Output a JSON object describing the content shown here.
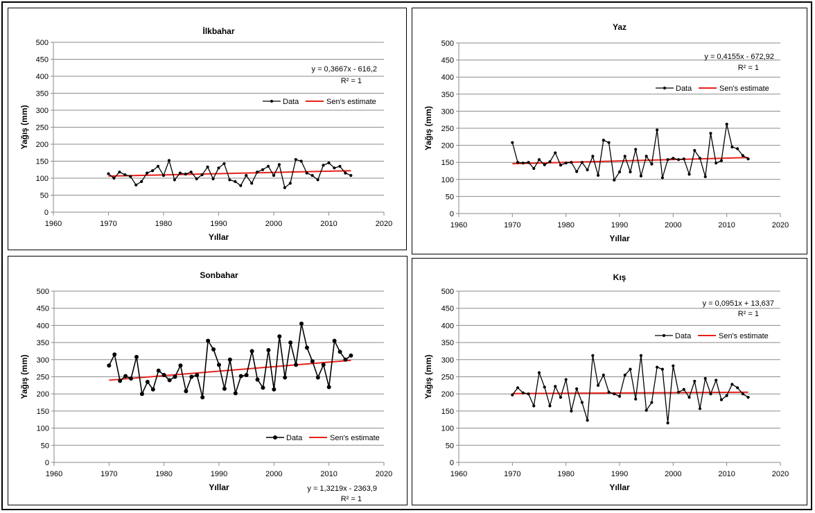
{
  "chart_data": [
    {
      "type": "line",
      "title": "İlkbahar",
      "xlabel": "Yıllar",
      "ylabel": "Yağış (mm)",
      "xlim": [
        1960,
        2020
      ],
      "ylim": [
        0,
        500
      ],
      "xticks": [
        "1960",
        "1970",
        "1980",
        "1990",
        "2000",
        "2010",
        "2020"
      ],
      "yticks": [
        "0",
        "50",
        "100",
        "150",
        "200",
        "250",
        "300",
        "350",
        "400",
        "450",
        "500"
      ],
      "legend": "right",
      "grid": true,
      "equation": "y = 0,3667x - 616,2",
      "r2": "R² = 1",
      "series": [
        {
          "name": "Data",
          "color": "#000000",
          "x": [
            1970,
            1971,
            1972,
            1973,
            1974,
            1975,
            1976,
            1977,
            1978,
            1979,
            1980,
            1981,
            1982,
            1983,
            1984,
            1985,
            1986,
            1987,
            1988,
            1989,
            1990,
            1991,
            1992,
            1993,
            1994,
            1995,
            1996,
            1997,
            1998,
            1999,
            2000,
            2001,
            2002,
            2003,
            2004,
            2005,
            2006,
            2007,
            2008,
            2009,
            2010,
            2011,
            2012,
            2013,
            2014
          ],
          "values": [
            113,
            100,
            118,
            110,
            105,
            80,
            90,
            115,
            122,
            135,
            108,
            152,
            95,
            115,
            112,
            118,
            98,
            110,
            133,
            98,
            130,
            143,
            95,
            90,
            78,
            108,
            85,
            118,
            125,
            135,
            108,
            140,
            72,
            85,
            155,
            150,
            115,
            108,
            95,
            138,
            145,
            130,
            135,
            115,
            108
          ]
        },
        {
          "name": "Sen's estimate",
          "color": "#e8201a",
          "x": [
            1970,
            2014
          ],
          "values": [
            106,
            122
          ]
        }
      ]
    },
    {
      "type": "line",
      "title": "Yaz",
      "xlabel": "Yıllar",
      "ylabel": "Yağış (mm)",
      "xlim": [
        1960,
        2020
      ],
      "ylim": [
        0,
        500
      ],
      "xticks": [
        "1960",
        "1970",
        "1980",
        "1990",
        "2000",
        "2010",
        "2020"
      ],
      "yticks": [
        "0",
        "50",
        "100",
        "150",
        "200",
        "250",
        "300",
        "350",
        "400",
        "450",
        "500"
      ],
      "legend": "right",
      "grid": true,
      "equation": "y = 0,4155x - 672,92",
      "r2": "R² = 1",
      "series": [
        {
          "name": "Data",
          "color": "#000000",
          "x": [
            1970,
            1971,
            1972,
            1973,
            1974,
            1975,
            1976,
            1977,
            1978,
            1979,
            1980,
            1981,
            1982,
            1983,
            1984,
            1985,
            1986,
            1987,
            1988,
            1989,
            1990,
            1991,
            1992,
            1993,
            1994,
            1995,
            1996,
            1997,
            1998,
            1999,
            2000,
            2001,
            2002,
            2003,
            2004,
            2005,
            2006,
            2007,
            2008,
            2009,
            2010,
            2011,
            2012,
            2013,
            2014
          ],
          "values": [
            208,
            150,
            148,
            150,
            132,
            158,
            143,
            152,
            178,
            142,
            148,
            150,
            123,
            150,
            128,
            168,
            112,
            215,
            208,
            98,
            122,
            168,
            122,
            188,
            110,
            168,
            145,
            245,
            105,
            158,
            162,
            158,
            160,
            115,
            185,
            162,
            108,
            235,
            148,
            155,
            262,
            195,
            190,
            170,
            160
          ]
        },
        {
          "name": "Sen's estimate",
          "color": "#e8201a",
          "x": [
            1970,
            2014
          ],
          "values": [
            146,
            164
          ]
        }
      ]
    },
    {
      "type": "line",
      "title": "Sonbahar",
      "xlabel": "Yıllar",
      "ylabel": "Yağış (mm)",
      "xlim": [
        1960,
        2020
      ],
      "ylim": [
        0,
        500
      ],
      "xticks": [
        "1960",
        "1970",
        "1980",
        "1990",
        "2000",
        "2010",
        "2020"
      ],
      "yticks": [
        "0",
        "50",
        "100",
        "150",
        "200",
        "250",
        "300",
        "350",
        "400",
        "450",
        "500"
      ],
      "legend": "bottom-right",
      "grid": true,
      "equation": "y = 1,3219x - 2363,9",
      "r2": "R² = 1",
      "series": [
        {
          "name": "Data",
          "color": "#000000",
          "x": [
            1970,
            1971,
            1972,
            1973,
            1974,
            1975,
            1976,
            1977,
            1978,
            1979,
            1980,
            1981,
            1982,
            1983,
            1984,
            1985,
            1986,
            1987,
            1988,
            1989,
            1990,
            1991,
            1992,
            1993,
            1994,
            1995,
            1996,
            1997,
            1998,
            1999,
            2000,
            2001,
            2002,
            2003,
            2004,
            2005,
            2006,
            2007,
            2008,
            2009,
            2010,
            2011,
            2012,
            2013,
            2014
          ],
          "values": [
            283,
            315,
            238,
            252,
            245,
            308,
            200,
            235,
            213,
            268,
            255,
            240,
            250,
            283,
            208,
            250,
            255,
            190,
            355,
            330,
            285,
            215,
            300,
            202,
            252,
            255,
            325,
            242,
            218,
            328,
            213,
            368,
            248,
            350,
            285,
            405,
            335,
            295,
            248,
            285,
            220,
            355,
            323,
            300,
            312
          ]
        },
        {
          "name": "Sen's estimate",
          "color": "#e8201a",
          "x": [
            1970,
            2014
          ],
          "values": [
            240,
            298
          ]
        }
      ]
    },
    {
      "type": "line",
      "title": "Kış",
      "xlabel": "Yıllar",
      "ylabel": "Yağış (mm)",
      "xlim": [
        1960,
        2020
      ],
      "ylim": [
        0,
        500
      ],
      "xticks": [
        "1960",
        "1970",
        "1980",
        "1990",
        "2000",
        "2010",
        "2020"
      ],
      "yticks": [
        "0",
        "50",
        "100",
        "150",
        "200",
        "250",
        "300",
        "350",
        "400",
        "450",
        "500"
      ],
      "legend": "right",
      "grid": true,
      "equation": "y = 0,0951x + 13,637",
      "r2": "R² = 1",
      "series": [
        {
          "name": "Data",
          "color": "#000000",
          "x": [
            1970,
            1971,
            1972,
            1973,
            1974,
            1975,
            1976,
            1977,
            1978,
            1979,
            1980,
            1981,
            1982,
            1983,
            1984,
            1985,
            1986,
            1987,
            1988,
            1989,
            1990,
            1991,
            1992,
            1993,
            1994,
            1995,
            1996,
            1997,
            1998,
            1999,
            2000,
            2001,
            2002,
            2003,
            2004,
            2005,
            2006,
            2007,
            2008,
            2009,
            2010,
            2011,
            2012,
            2013,
            2014
          ],
          "values": [
            197,
            218,
            203,
            200,
            165,
            262,
            220,
            165,
            222,
            190,
            242,
            150,
            215,
            175,
            123,
            312,
            225,
            255,
            205,
            200,
            193,
            255,
            272,
            185,
            312,
            152,
            175,
            278,
            272,
            115,
            282,
            205,
            213,
            190,
            237,
            157,
            245,
            200,
            240,
            183,
            195,
            228,
            218,
            200,
            190
          ]
        },
        {
          "name": "Sen's estimate",
          "color": "#e8201a",
          "x": [
            1970,
            2014
          ],
          "values": [
            201,
            205
          ]
        }
      ]
    }
  ]
}
